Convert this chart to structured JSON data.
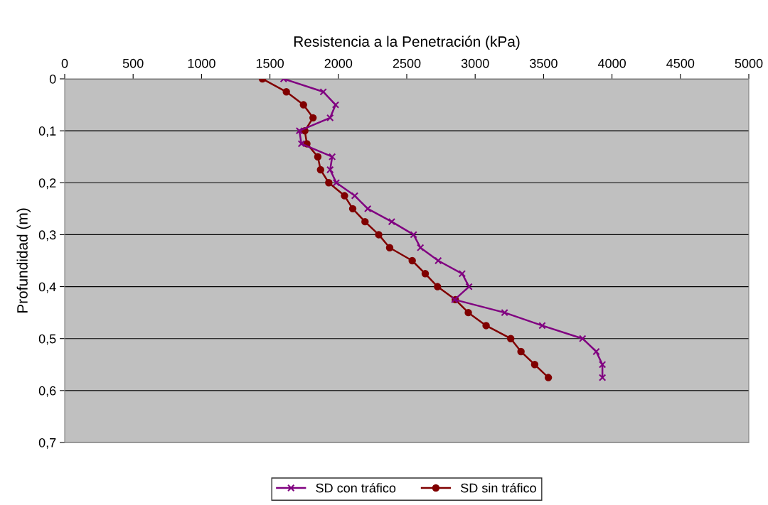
{
  "chart_data": {
    "type": "line",
    "xlabel": "Resistencia a la Penetración (kPa)",
    "ylabel": "Profundidad (m)",
    "xlim": [
      0,
      5000
    ],
    "xticks": [
      0,
      500,
      1000,
      1500,
      2000,
      2500,
      3000,
      3500,
      4000,
      4500,
      5000
    ],
    "ylim": [
      0.7,
      0
    ],
    "yticks": [
      0,
      {
        "value": 0.1,
        "label": "0,1"
      },
      {
        "value": 0.2,
        "label": "0,2"
      },
      {
        "value": 0.3,
        "label": "0,3"
      },
      {
        "value": 0.4,
        "label": "0,4"
      },
      {
        "value": 0.5,
        "label": "0,5"
      },
      {
        "value": 0.6,
        "label": "0,6"
      },
      {
        "value": 0.7,
        "label": "0,7"
      }
    ],
    "grid": "y",
    "legend": "bottom",
    "series": [
      {
        "name": "SD con tráfico",
        "color": "#800080",
        "marker": "cross",
        "x": [
          1600,
          1890,
          1980,
          1940,
          1715,
          1730,
          1955,
          1940,
          1985,
          2120,
          2215,
          2390,
          2550,
          2600,
          2730,
          2905,
          2955,
          2850,
          3215,
          3490,
          3785,
          3885,
          3930,
          3930
        ],
        "values": [
          0,
          0.025,
          0.05,
          0.075,
          0.1,
          0.125,
          0.15,
          0.175,
          0.2,
          0.225,
          0.25,
          0.275,
          0.3,
          0.325,
          0.35,
          0.375,
          0.4,
          0.425,
          0.45,
          0.475,
          0.5,
          0.525,
          0.55,
          0.575
        ]
      },
      {
        "name": "SD sin tráfico",
        "color": "#800000",
        "marker": "circle",
        "x": [
          1445,
          1620,
          1745,
          1815,
          1755,
          1770,
          1850,
          1870,
          1930,
          2045,
          2105,
          2195,
          2295,
          2375,
          2540,
          2635,
          2725,
          2855,
          2950,
          3080,
          3260,
          3335,
          3435,
          3535
        ],
        "values": [
          0,
          0.025,
          0.05,
          0.075,
          0.1,
          0.125,
          0.15,
          0.175,
          0.2,
          0.225,
          0.25,
          0.275,
          0.3,
          0.325,
          0.35,
          0.375,
          0.4,
          0.425,
          0.45,
          0.475,
          0.5,
          0.525,
          0.55,
          0.575
        ]
      }
    ]
  }
}
